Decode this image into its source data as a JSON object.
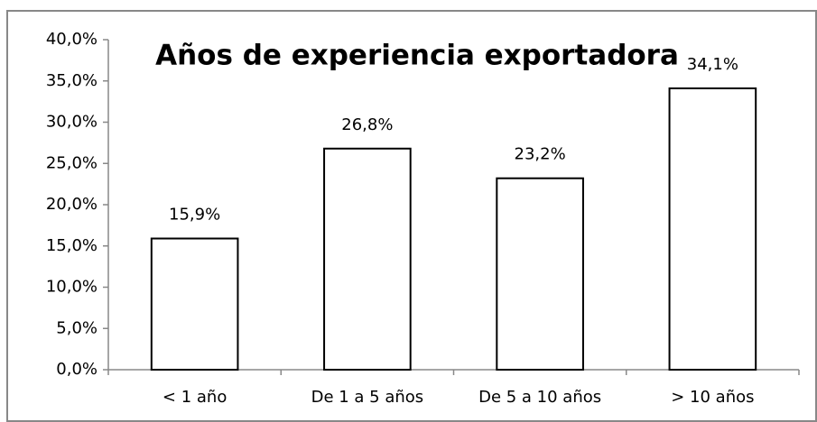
{
  "chart_data": {
    "type": "bar",
    "title": "Años de experiencia exportadora",
    "categories": [
      "< 1 año",
      "De 1 a 5 años",
      "De 5 a 10 años",
      "> 10 años"
    ],
    "values": [
      15.9,
      26.8,
      23.2,
      34.1
    ],
    "value_labels": [
      "15,9%",
      "26,8%",
      "23,2%",
      "34,1%"
    ],
    "color": "#ffffff",
    "ylim": [
      0,
      40
    ],
    "yticks": [
      {
        "value": 0,
        "label": "0,0%"
      },
      {
        "value": 5,
        "label": "5,0%"
      },
      {
        "value": 10,
        "label": "10,0%"
      },
      {
        "value": 15,
        "label": "15,0%"
      },
      {
        "value": 20,
        "label": "20,0%"
      },
      {
        "value": 25,
        "label": "25,0%"
      },
      {
        "value": 30,
        "label": "30,0%"
      },
      {
        "value": 35,
        "label": "35,0%"
      },
      {
        "value": 40,
        "label": "40,0%"
      }
    ],
    "grid": false
  }
}
